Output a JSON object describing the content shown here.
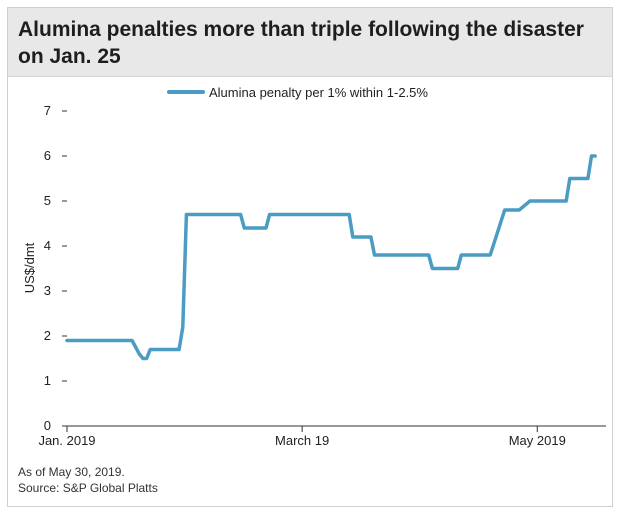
{
  "title": "Alumina penalties more than triple following the disaster on Jan. 25",
  "footer": {
    "note": "As of May 30, 2019.",
    "source": "Source: S&P Global Platts"
  },
  "colors": {
    "series": "#4a9cc4",
    "axis": "#333333",
    "title_bg": "#e8e8e8"
  },
  "chart_data": {
    "type": "line",
    "ylabel": "US$/dmt",
    "xlabel": "",
    "ylim": [
      0,
      7
    ],
    "yticks": [
      0,
      1,
      2,
      3,
      4,
      5,
      6,
      7
    ],
    "xlim": [
      0,
      149
    ],
    "xticks": [
      {
        "x": 0,
        "label": "Jan. 2019"
      },
      {
        "x": 65,
        "label": "March 19"
      },
      {
        "x": 130,
        "label": "May 2019"
      }
    ],
    "legend_position": "top-center",
    "grid": false,
    "series": [
      {
        "name": "Alumina penalty per 1% within 1-2.5%",
        "points": [
          [
            0,
            1.9
          ],
          [
            18,
            1.9
          ],
          [
            20,
            1.6
          ],
          [
            21,
            1.5
          ],
          [
            22,
            1.5
          ],
          [
            23,
            1.7
          ],
          [
            31,
            1.7
          ],
          [
            32,
            2.2
          ],
          [
            33,
            4.7
          ],
          [
            48,
            4.7
          ],
          [
            49,
            4.4
          ],
          [
            55,
            4.4
          ],
          [
            56,
            4.7
          ],
          [
            78,
            4.7
          ],
          [
            79,
            4.2
          ],
          [
            84,
            4.2
          ],
          [
            85,
            3.8
          ],
          [
            100,
            3.8
          ],
          [
            101,
            3.5
          ],
          [
            108,
            3.5
          ],
          [
            109,
            3.8
          ],
          [
            117,
            3.8
          ],
          [
            121,
            4.8
          ],
          [
            125,
            4.8
          ],
          [
            128,
            5.0
          ],
          [
            138,
            5.0
          ],
          [
            139,
            5.5
          ],
          [
            144,
            5.5
          ],
          [
            145,
            6.0
          ],
          [
            146,
            6.0
          ]
        ]
      }
    ]
  }
}
